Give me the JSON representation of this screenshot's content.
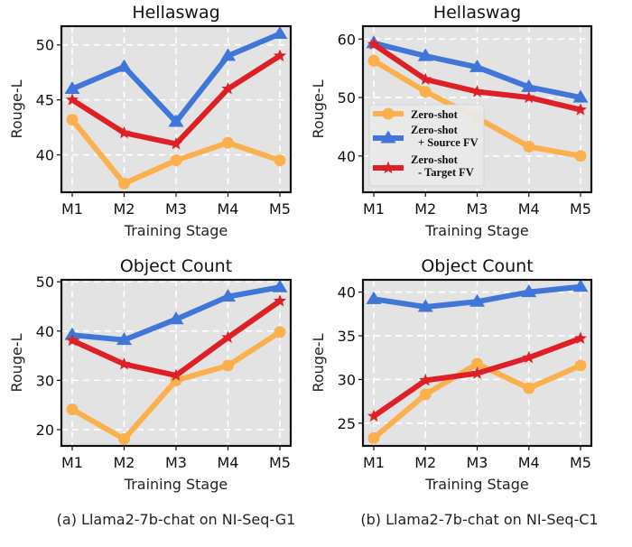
{
  "colors": {
    "zero_shot": "#fbb04e",
    "source_fv": "#3f76d8",
    "target_fv": "#df1f26",
    "panel_bg": "#e3e3e3",
    "grid": "#ffffff"
  },
  "legend": {
    "placement": "center-left of top-right panel",
    "entries": [
      {
        "line1": "Zero-shot",
        "line2": "",
        "series": "zero_shot",
        "marker": "circle"
      },
      {
        "line1": "Zero-shot",
        "line2": "+ Source FV",
        "series": "source_fv",
        "marker": "triangle"
      },
      {
        "line1": "Zero-shot",
        "line2": "- Target FV",
        "series": "target_fv",
        "marker": "star"
      }
    ]
  },
  "captions": {
    "a": "(a) Llama2-7b-chat on NI-Seq-G1",
    "b": "(b) Llama2-7b-chat on NI-Seq-C1"
  },
  "chart_data": [
    {
      "type": "line",
      "panel": "top-left",
      "title": "Hellaswag",
      "xlabel": "Training Stage",
      "ylabel": "Rouge-L",
      "categories": [
        "M1",
        "M2",
        "M3",
        "M4",
        "M5"
      ],
      "ylim": [
        36.6,
        51.7
      ],
      "yticks": [
        40,
        45,
        50
      ],
      "grid": true,
      "series": [
        {
          "name": "Zero-shot",
          "key": "zero_shot",
          "values": [
            43.2,
            37.4,
            39.5,
            41.1,
            39.5
          ]
        },
        {
          "name": "Zero-shot + Source FV",
          "key": "source_fv",
          "values": [
            46.0,
            48.0,
            43.0,
            49.0,
            51.0
          ]
        },
        {
          "name": "Zero-shot - Target FV",
          "key": "target_fv",
          "values": [
            45.0,
            42.0,
            41.0,
            46.0,
            49.0
          ]
        }
      ]
    },
    {
      "type": "line",
      "panel": "top-right",
      "title": "Hellaswag",
      "xlabel": "Training Stage",
      "ylabel": "Rouge-L",
      "categories": [
        "M1",
        "M2",
        "M3",
        "M4",
        "M5"
      ],
      "ylim": [
        33.8,
        62.2
      ],
      "yticks": [
        40,
        50,
        60
      ],
      "grid": true,
      "legend": true,
      "series": [
        {
          "name": "Zero-shot",
          "key": "zero_shot",
          "values": [
            56.3,
            51.0,
            46.5,
            41.6,
            40.0
          ]
        },
        {
          "name": "Zero-shot + Source FV",
          "key": "source_fv",
          "values": [
            59.3,
            57.1,
            55.2,
            51.8,
            50.0
          ]
        },
        {
          "name": "Zero-shot - Target FV",
          "key": "target_fv",
          "values": [
            59.1,
            53.1,
            51.0,
            50.0,
            47.9
          ]
        }
      ]
    },
    {
      "type": "line",
      "panel": "bottom-left",
      "title": "Object Count",
      "xlabel": "Training Stage",
      "ylabel": "Rouge-L",
      "categories": [
        "M1",
        "M2",
        "M3",
        "M4",
        "M5"
      ],
      "ylim": [
        16.7,
        50.4
      ],
      "yticks": [
        20,
        30,
        40,
        50
      ],
      "grid": true,
      "series": [
        {
          "name": "Zero-shot",
          "key": "zero_shot",
          "values": [
            24.1,
            18.1,
            30.0,
            33.0,
            39.8
          ]
        },
        {
          "name": "Zero-shot + Source FV",
          "key": "source_fv",
          "values": [
            39.2,
            38.2,
            42.4,
            47.0,
            48.9
          ]
        },
        {
          "name": "Zero-shot - Target FV",
          "key": "target_fv",
          "values": [
            38.1,
            33.3,
            31.0,
            38.7,
            46.1
          ]
        }
      ]
    },
    {
      "type": "line",
      "panel": "bottom-right",
      "title": "Object Count",
      "xlabel": "Training Stage",
      "ylabel": "Rouge-L",
      "categories": [
        "M1",
        "M2",
        "M3",
        "M4",
        "M5"
      ],
      "ylim": [
        22.4,
        41.4
      ],
      "yticks": [
        25,
        30,
        35,
        40
      ],
      "grid": true,
      "series": [
        {
          "name": "Zero-shot",
          "key": "zero_shot",
          "values": [
            23.3,
            28.3,
            31.8,
            29.0,
            31.6
          ]
        },
        {
          "name": "Zero-shot + Source FV",
          "key": "source_fv",
          "values": [
            39.2,
            38.3,
            38.9,
            40.0,
            40.6
          ]
        },
        {
          "name": "Zero-shot - Target FV",
          "key": "target_fv",
          "values": [
            25.8,
            29.9,
            30.7,
            32.5,
            34.7
          ]
        }
      ]
    }
  ]
}
